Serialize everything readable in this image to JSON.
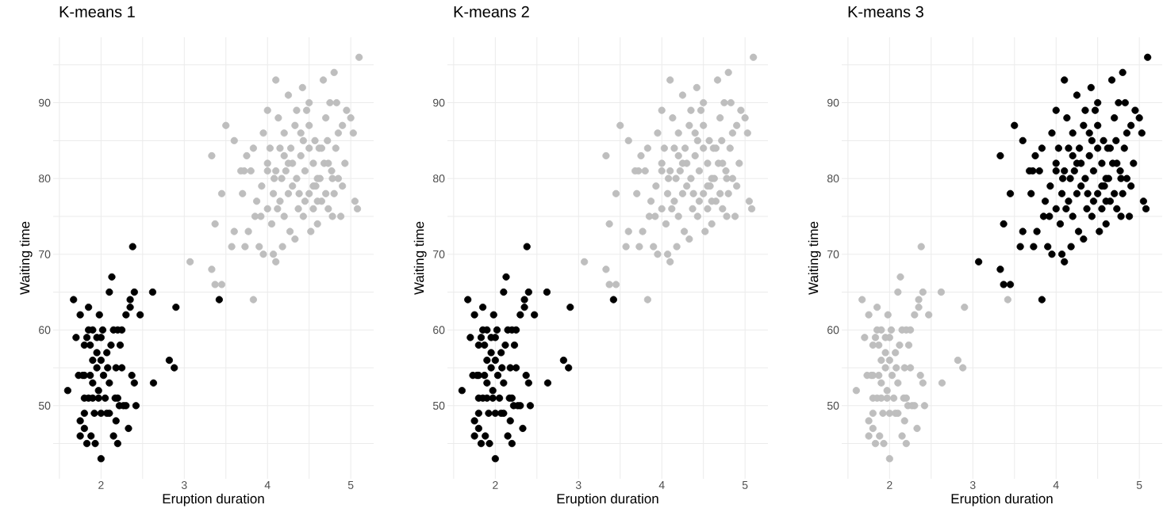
{
  "chart_data": [
    {
      "type": "scatter",
      "title": "K-means 1",
      "xlabel": "Eruption duration",
      "ylabel": "Waiting time",
      "grid": true,
      "xlim": [
        1.425,
        5.275
      ],
      "ylim": [
        40.35,
        98.65
      ],
      "xticks": [
        {
          "value": 1.5,
          "label": null
        },
        2,
        {
          "value": 2.5,
          "label": null
        },
        3,
        {
          "value": 3.5,
          "label": null
        },
        4,
        {
          "value": 4.5,
          "label": null
        },
        5
      ],
      "yticks": [
        {
          "value": 45,
          "label": null
        },
        50,
        {
          "value": 55,
          "label": null
        },
        60,
        {
          "value": 65,
          "label": null
        },
        70,
        {
          "value": 75,
          "label": null
        },
        80,
        {
          "value": 85,
          "label": null
        },
        90,
        {
          "value": 95,
          "label": null
        }
      ],
      "series": [
        {
          "color": "#bebebe",
          "x": [
            3.07,
            3.33,
            3.33,
            3.37,
            3.37,
            3.45,
            3.45,
            3.5,
            3.57,
            3.6,
            3.6,
            3.7,
            3.72,
            3.73,
            3.75,
            3.8,
            3.83,
            3.83,
            3.85,
            3.87,
            3.9,
            3.93,
            3.95,
            3.95,
            4.0,
            4.0,
            4.0,
            4.03,
            4.05,
            4.07,
            4.07,
            4.1,
            4.1,
            4.1,
            4.13,
            4.15,
            4.15,
            4.17,
            4.2,
            4.2,
            4.22,
            4.25,
            4.25,
            4.27,
            4.3,
            4.3,
            4.33,
            4.33,
            4.35,
            4.37,
            4.4,
            4.4,
            4.42,
            4.43,
            4.45,
            4.47,
            4.5,
            4.5,
            4.5,
            4.52,
            4.55,
            4.55,
            4.57,
            4.58,
            4.6,
            4.6,
            4.62,
            4.65,
            4.67,
            4.68,
            4.7,
            4.7,
            4.72,
            4.73,
            4.75,
            4.77,
            4.78,
            4.8,
            4.8,
            4.82,
            4.83,
            4.85,
            4.88,
            4.9,
            4.93,
            4.95,
            5.0,
            5.03,
            5.05,
            5.08,
            5.1,
            4.35,
            4.2,
            4.12,
            4.45,
            4.5,
            4.63,
            4.73,
            4.85,
            4.9,
            3.92,
            4.08,
            4.18,
            4.28,
            4.38,
            4.43,
            4.55,
            4.65,
            4.78,
            3.68,
            3.77,
            4.0,
            4.25,
            4.6
          ],
          "values": [
            69,
            68,
            83,
            74,
            66,
            66,
            78,
            87,
            71,
            85,
            73,
            78,
            81,
            71,
            83,
            81,
            64,
            84,
            75,
            77,
            71,
            79,
            70,
            86,
            89,
            76,
            82,
            84,
            74,
            70,
            78,
            69,
            93,
            81,
            88,
            77,
            84,
            80,
            86,
            75,
            81,
            78,
            91,
            73,
            82,
            79,
            87,
            72,
            80,
            76,
            86,
            83,
            92,
            75,
            81,
            89,
            90,
            84,
            78,
            73,
            76,
            82,
            85,
            79,
            80,
            74,
            84,
            77,
            93,
            82,
            78,
            88,
            85,
            76,
            90,
            81,
            75,
            94,
            78,
            84,
            90,
            80,
            75,
            87,
            82,
            89,
            88,
            86,
            77,
            76,
            96,
            89,
            83,
            76,
            77,
            87,
            80,
            82,
            86,
            79,
            75,
            80,
            71,
            84,
            78,
            85,
            79,
            84,
            80,
            81,
            73,
            81,
            82,
            77
          ]
        },
        {
          "color": "#000000",
          "x": [
            1.6,
            1.67,
            1.7,
            1.75,
            1.75,
            1.75,
            1.8,
            1.8,
            1.8,
            1.8,
            1.83,
            1.83,
            1.85,
            1.85,
            1.87,
            1.87,
            1.88,
            1.9,
            1.9,
            1.9,
            1.92,
            1.93,
            1.95,
            1.95,
            1.97,
            1.98,
            2.0,
            2.0,
            2.0,
            2.0,
            2.02,
            2.03,
            2.05,
            2.07,
            2.07,
            2.1,
            2.1,
            2.12,
            2.13,
            2.15,
            2.15,
            2.17,
            2.18,
            2.2,
            2.2,
            2.22,
            2.23,
            2.25,
            2.27,
            2.3,
            2.33,
            2.35,
            2.37,
            2.38,
            2.4,
            2.4,
            2.42,
            2.47,
            2.62,
            2.63,
            2.82,
            2.88,
            2.9,
            3.42,
            1.73,
            1.78,
            1.9,
            1.97,
            2.08,
            2.25,
            2.2,
            2.35,
            1.8,
            2.1,
            1.95,
            2.3,
            2.18,
            1.85
          ],
          "values": [
            52,
            64,
            59,
            62,
            48,
            46,
            54,
            51,
            47,
            58,
            59,
            45,
            63,
            60,
            54,
            58,
            46,
            56,
            53,
            51,
            49,
            45,
            57,
            55,
            52,
            62,
            43,
            56,
            59,
            49,
            60,
            54,
            51,
            49,
            57,
            53,
            65,
            58,
            67,
            60,
            46,
            51,
            55,
            45,
            60,
            50,
            58,
            55,
            50,
            62,
            47,
            64,
            54,
            71,
            65,
            53,
            50,
            62,
            65,
            53,
            56,
            55,
            63,
            64,
            54,
            54,
            60,
            51,
            55,
            60,
            51,
            63,
            49,
            49,
            59,
            50,
            48,
            51
          ]
        }
      ]
    },
    {
      "type": "scatter",
      "title": "K-means 2",
      "xlabel": "Eruption duration",
      "ylabel": "Waiting time",
      "grid": true,
      "xlim": [
        1.425,
        5.275
      ],
      "ylim": [
        40.35,
        98.65
      ],
      "xticks": [
        {
          "value": 1.5,
          "label": null
        },
        2,
        {
          "value": 2.5,
          "label": null
        },
        3,
        {
          "value": 3.5,
          "label": null
        },
        4,
        {
          "value": 4.5,
          "label": null
        },
        5
      ],
      "yticks": [
        {
          "value": 45,
          "label": null
        },
        50,
        {
          "value": 55,
          "label": null
        },
        60,
        {
          "value": 65,
          "label": null
        },
        70,
        {
          "value": 75,
          "label": null
        },
        80,
        {
          "value": 85,
          "label": null
        },
        90,
        {
          "value": 95,
          "label": null
        }
      ],
      "series": [
        {
          "color": "#bebebe",
          "x": [
            3.07,
            3.33,
            3.33,
            3.37,
            3.37,
            3.45,
            3.45,
            3.5,
            3.57,
            3.6,
            3.6,
            3.7,
            3.72,
            3.73,
            3.75,
            3.8,
            3.83,
            3.83,
            3.85,
            3.87,
            3.9,
            3.93,
            3.95,
            3.95,
            4.0,
            4.0,
            4.0,
            4.03,
            4.05,
            4.07,
            4.07,
            4.1,
            4.1,
            4.1,
            4.13,
            4.15,
            4.15,
            4.17,
            4.2,
            4.2,
            4.22,
            4.25,
            4.25,
            4.27,
            4.3,
            4.3,
            4.33,
            4.33,
            4.35,
            4.37,
            4.4,
            4.4,
            4.42,
            4.43,
            4.45,
            4.47,
            4.5,
            4.5,
            4.5,
            4.52,
            4.55,
            4.55,
            4.57,
            4.58,
            4.6,
            4.6,
            4.62,
            4.65,
            4.67,
            4.68,
            4.7,
            4.7,
            4.72,
            4.73,
            4.75,
            4.77,
            4.78,
            4.8,
            4.8,
            4.82,
            4.83,
            4.85,
            4.88,
            4.9,
            4.93,
            4.95,
            5.0,
            5.03,
            5.05,
            5.08,
            5.1,
            4.35,
            4.2,
            4.12,
            4.45,
            4.5,
            4.63,
            4.73,
            4.85,
            4.9,
            3.92,
            4.08,
            4.18,
            4.28,
            4.38,
            4.43,
            4.55,
            4.65,
            4.78,
            3.68,
            3.77,
            4.0,
            4.25,
            4.6
          ],
          "values": [
            69,
            68,
            83,
            74,
            66,
            66,
            78,
            87,
            71,
            85,
            73,
            78,
            81,
            71,
            83,
            81,
            64,
            84,
            75,
            77,
            71,
            79,
            70,
            86,
            89,
            76,
            82,
            84,
            74,
            70,
            78,
            69,
            93,
            81,
            88,
            77,
            84,
            80,
            86,
            75,
            81,
            78,
            91,
            73,
            82,
            79,
            87,
            72,
            80,
            76,
            86,
            83,
            92,
            75,
            81,
            89,
            90,
            84,
            78,
            73,
            76,
            82,
            85,
            79,
            80,
            74,
            84,
            77,
            93,
            82,
            78,
            88,
            85,
            76,
            90,
            81,
            75,
            94,
            78,
            84,
            90,
            80,
            75,
            87,
            82,
            89,
            88,
            86,
            77,
            76,
            96,
            89,
            83,
            76,
            77,
            87,
            80,
            82,
            86,
            79,
            75,
            80,
            71,
            84,
            78,
            85,
            79,
            84,
            80,
            81,
            73,
            81,
            82,
            77
          ]
        },
        {
          "color": "#000000",
          "x": [
            1.6,
            1.67,
            1.7,
            1.75,
            1.75,
            1.75,
            1.8,
            1.8,
            1.8,
            1.8,
            1.83,
            1.83,
            1.85,
            1.85,
            1.87,
            1.87,
            1.88,
            1.9,
            1.9,
            1.9,
            1.92,
            1.93,
            1.95,
            1.95,
            1.97,
            1.98,
            2.0,
            2.0,
            2.0,
            2.0,
            2.02,
            2.03,
            2.05,
            2.07,
            2.07,
            2.1,
            2.1,
            2.12,
            2.13,
            2.15,
            2.15,
            2.17,
            2.18,
            2.2,
            2.2,
            2.22,
            2.23,
            2.25,
            2.27,
            2.3,
            2.33,
            2.35,
            2.37,
            2.38,
            2.4,
            2.4,
            2.42,
            2.47,
            2.62,
            2.63,
            2.82,
            2.88,
            2.9,
            3.42,
            1.73,
            1.78,
            1.9,
            1.97,
            2.08,
            2.25,
            2.2,
            2.35,
            1.8,
            2.1,
            1.95,
            2.3,
            2.18,
            1.85
          ],
          "values": [
            52,
            64,
            59,
            62,
            48,
            46,
            54,
            51,
            47,
            58,
            59,
            45,
            63,
            60,
            54,
            58,
            46,
            56,
            53,
            51,
            49,
            45,
            57,
            55,
            52,
            62,
            43,
            56,
            59,
            49,
            60,
            54,
            51,
            49,
            57,
            53,
            65,
            58,
            67,
            60,
            46,
            51,
            55,
            45,
            60,
            50,
            58,
            55,
            50,
            62,
            47,
            64,
            54,
            71,
            65,
            53,
            50,
            62,
            65,
            53,
            56,
            55,
            63,
            64,
            54,
            54,
            60,
            51,
            55,
            60,
            51,
            63,
            49,
            49,
            59,
            50,
            48,
            51
          ]
        }
      ]
    },
    {
      "type": "scatter",
      "title": "K-means 3",
      "xlabel": "Eruption duration",
      "ylabel": "Waiting time",
      "grid": true,
      "xlim": [
        1.425,
        5.275
      ],
      "ylim": [
        40.35,
        98.65
      ],
      "xticks": [
        {
          "value": 1.5,
          "label": null
        },
        2,
        {
          "value": 2.5,
          "label": null
        },
        3,
        {
          "value": 3.5,
          "label": null
        },
        4,
        {
          "value": 4.5,
          "label": null
        },
        5
      ],
      "yticks": [
        {
          "value": 45,
          "label": null
        },
        50,
        {
          "value": 55,
          "label": null
        },
        60,
        {
          "value": 65,
          "label": null
        },
        70,
        {
          "value": 75,
          "label": null
        },
        80,
        {
          "value": 85,
          "label": null
        },
        90,
        {
          "value": 95,
          "label": null
        }
      ],
      "series": [
        {
          "color": "#000000",
          "x": [
            3.07,
            3.33,
            3.33,
            3.37,
            3.37,
            3.45,
            3.45,
            3.5,
            3.57,
            3.6,
            3.6,
            3.7,
            3.72,
            3.73,
            3.75,
            3.8,
            3.83,
            3.83,
            3.85,
            3.87,
            3.9,
            3.93,
            3.95,
            3.95,
            4.0,
            4.0,
            4.0,
            4.03,
            4.05,
            4.07,
            4.07,
            4.1,
            4.1,
            4.1,
            4.13,
            4.15,
            4.15,
            4.17,
            4.2,
            4.2,
            4.22,
            4.25,
            4.25,
            4.27,
            4.3,
            4.3,
            4.33,
            4.33,
            4.35,
            4.37,
            4.4,
            4.4,
            4.42,
            4.43,
            4.45,
            4.47,
            4.5,
            4.5,
            4.5,
            4.52,
            4.55,
            4.55,
            4.57,
            4.58,
            4.6,
            4.6,
            4.62,
            4.65,
            4.67,
            4.68,
            4.7,
            4.7,
            4.72,
            4.73,
            4.75,
            4.77,
            4.78,
            4.8,
            4.8,
            4.82,
            4.83,
            4.85,
            4.88,
            4.9,
            4.93,
            4.95,
            5.0,
            5.03,
            5.05,
            5.08,
            5.1,
            4.35,
            4.2,
            4.12,
            4.45,
            4.5,
            4.63,
            4.73,
            4.85,
            4.9,
            3.92,
            4.08,
            4.18,
            4.28,
            4.38,
            4.43,
            4.55,
            4.65,
            4.78,
            3.68,
            3.77,
            4.0,
            4.25,
            4.6
          ],
          "values": [
            69,
            68,
            83,
            74,
            66,
            66,
            78,
            87,
            71,
            85,
            73,
            78,
            81,
            71,
            83,
            81,
            64,
            84,
            75,
            77,
            71,
            79,
            70,
            86,
            89,
            76,
            82,
            84,
            74,
            70,
            78,
            69,
            93,
            81,
            88,
            77,
            84,
            80,
            86,
            75,
            81,
            78,
            91,
            73,
            82,
            79,
            87,
            72,
            80,
            76,
            86,
            83,
            92,
            75,
            81,
            89,
            90,
            84,
            78,
            73,
            76,
            82,
            85,
            79,
            80,
            74,
            84,
            77,
            93,
            82,
            78,
            88,
            85,
            76,
            90,
            81,
            75,
            94,
            78,
            84,
            90,
            80,
            75,
            87,
            82,
            89,
            88,
            86,
            77,
            76,
            96,
            89,
            83,
            76,
            77,
            87,
            80,
            82,
            86,
            79,
            75,
            80,
            71,
            84,
            78,
            85,
            79,
            84,
            80,
            81,
            73,
            81,
            82,
            77
          ]
        },
        {
          "color": "#bebebe",
          "x": [
            1.6,
            1.67,
            1.7,
            1.75,
            1.75,
            1.75,
            1.8,
            1.8,
            1.8,
            1.8,
            1.83,
            1.83,
            1.85,
            1.85,
            1.87,
            1.87,
            1.88,
            1.9,
            1.9,
            1.9,
            1.92,
            1.93,
            1.95,
            1.95,
            1.97,
            1.98,
            2.0,
            2.0,
            2.0,
            2.0,
            2.02,
            2.03,
            2.05,
            2.07,
            2.07,
            2.1,
            2.1,
            2.12,
            2.13,
            2.15,
            2.15,
            2.17,
            2.18,
            2.2,
            2.2,
            2.22,
            2.23,
            2.25,
            2.27,
            2.3,
            2.33,
            2.35,
            2.37,
            2.38,
            2.4,
            2.4,
            2.42,
            2.47,
            2.62,
            2.63,
            2.82,
            2.88,
            2.9,
            3.42,
            1.73,
            1.78,
            1.9,
            1.97,
            2.08,
            2.25,
            2.2,
            2.35,
            1.8,
            2.1,
            1.95,
            2.3,
            2.18,
            1.85
          ],
          "values": [
            52,
            64,
            59,
            62,
            48,
            46,
            54,
            51,
            47,
            58,
            59,
            45,
            63,
            60,
            54,
            58,
            46,
            56,
            53,
            51,
            49,
            45,
            57,
            55,
            52,
            62,
            43,
            56,
            59,
            49,
            60,
            54,
            51,
            49,
            57,
            53,
            65,
            58,
            67,
            60,
            46,
            51,
            55,
            45,
            60,
            50,
            58,
            55,
            50,
            62,
            47,
            64,
            54,
            71,
            65,
            53,
            50,
            62,
            65,
            53,
            56,
            55,
            63,
            64,
            54,
            54,
            60,
            51,
            55,
            60,
            51,
            63,
            49,
            49,
            59,
            50,
            48,
            51
          ]
        }
      ]
    }
  ]
}
